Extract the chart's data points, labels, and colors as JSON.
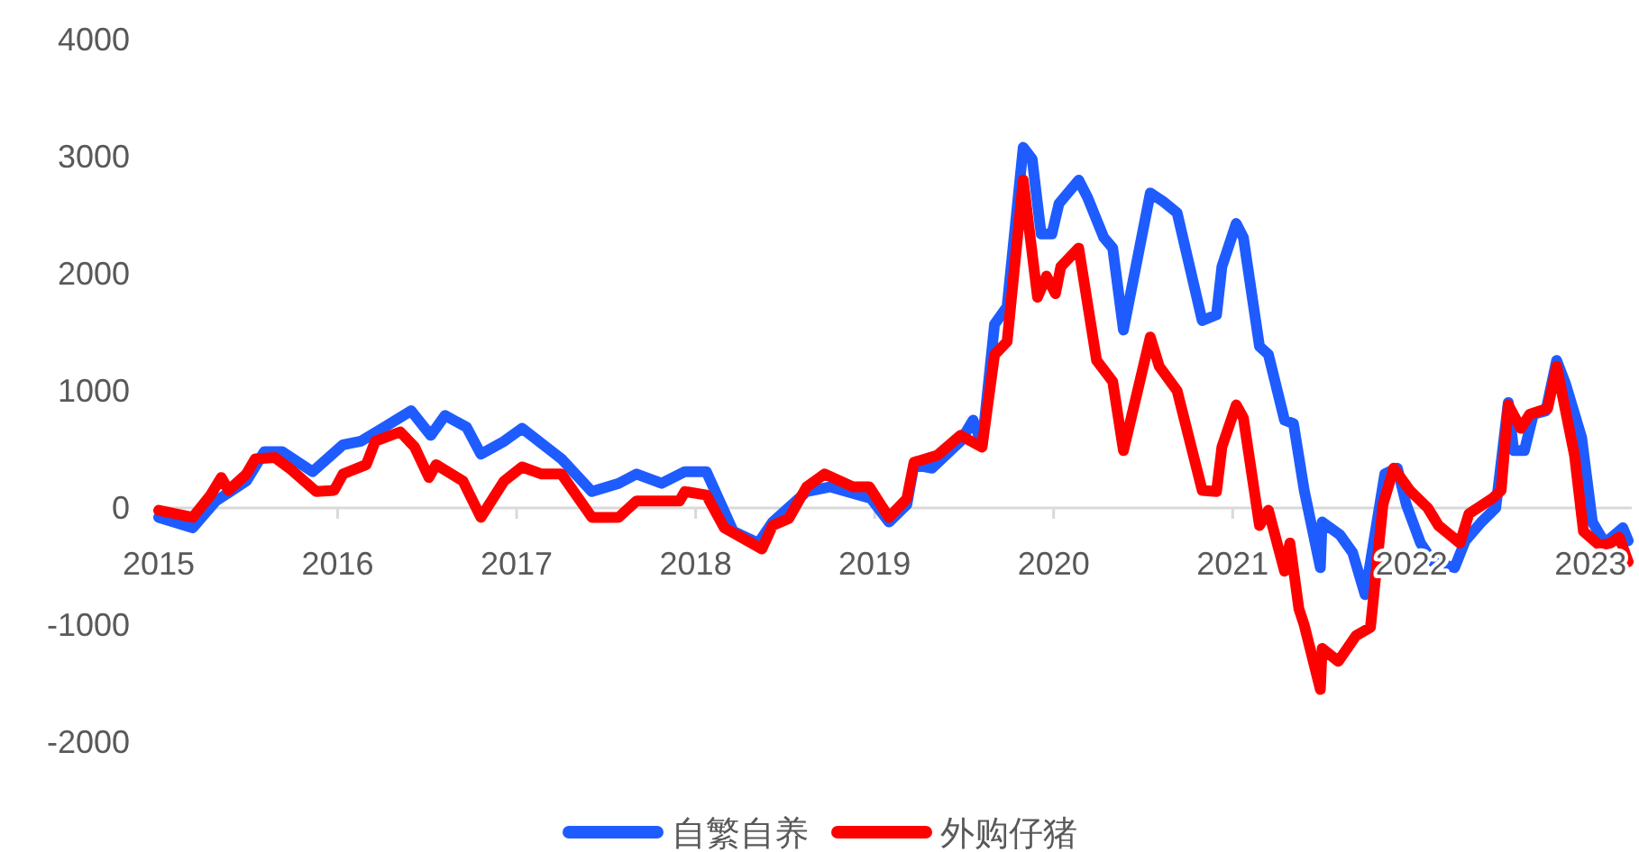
{
  "chart_data": {
    "type": "line",
    "xlim": [
      2015,
      2023.23
    ],
    "ylim": [
      -2000,
      4000
    ],
    "xticks": [
      2015,
      2016,
      2017,
      2018,
      2019,
      2020,
      2021,
      2022,
      2023
    ],
    "yticks": [
      -2000,
      -1000,
      0,
      1000,
      2000,
      3000,
      4000
    ],
    "grid": false,
    "legend": "bottom",
    "marker": "none",
    "line_style": "solid",
    "series": [
      {
        "name": "自繁自养",
        "color": "#1f5cff",
        "x": [
          2015.0,
          2015.19,
          2015.32,
          2015.49,
          2015.59,
          2015.69,
          2015.86,
          2016.03,
          2016.13,
          2016.26,
          2016.41,
          2016.52,
          2016.6,
          2016.72,
          2016.8,
          2016.93,
          2017.03,
          2017.25,
          2017.42,
          2017.57,
          2017.67,
          2017.81,
          2017.94,
          2018.06,
          2018.21,
          2018.35,
          2018.43,
          2018.62,
          2018.75,
          2018.98,
          2019.08,
          2019.18,
          2019.22,
          2019.32,
          2019.48,
          2019.55,
          2019.6,
          2019.67,
          2019.74,
          2019.83,
          2019.88,
          2019.93,
          2019.99,
          2020.03,
          2020.14,
          2020.19,
          2020.28,
          2020.33,
          2020.39,
          2020.54,
          2020.61,
          2020.69,
          2020.83,
          2020.91,
          2020.94,
          2021.02,
          2021.06,
          2021.15,
          2021.2,
          2021.29,
          2021.34,
          2021.4,
          2021.49,
          2021.5,
          2021.6,
          2021.67,
          2021.74,
          2021.85,
          2021.92,
          2021.97,
          2022.05,
          2022.12,
          2022.24,
          2022.3,
          2022.39,
          2022.47,
          2022.54,
          2022.57,
          2022.63,
          2022.68,
          2022.75,
          2022.81,
          2022.86,
          2022.95,
          2023.01,
          2023.08,
          2023.18,
          2023.21
        ],
        "values": [
          -80,
          -170,
          60,
          230,
          480,
          480,
          310,
          540,
          570,
          690,
          830,
          620,
          790,
          690,
          460,
          570,
          680,
          420,
          140,
          210,
          290,
          210,
          310,
          310,
          -200,
          -300,
          -120,
          140,
          180,
          80,
          -120,
          30,
          370,
          340,
          570,
          750,
          540,
          1570,
          1720,
          3080,
          2980,
          2340,
          2340,
          2600,
          2800,
          2650,
          2310,
          2220,
          1520,
          2690,
          2620,
          2520,
          1600,
          1650,
          2060,
          2430,
          2310,
          1380,
          1310,
          750,
          720,
          150,
          -510,
          -120,
          -230,
          -380,
          -740,
          290,
          340,
          30,
          -300,
          -460,
          -510,
          -280,
          -120,
          0,
          900,
          490,
          490,
          800,
          830,
          1260,
          1060,
          600,
          -120,
          -300,
          -170,
          -280
        ]
      },
      {
        "name": "外购仔猪",
        "color": "#ff0000",
        "x": [
          2015.0,
          2015.19,
          2015.29,
          2015.35,
          2015.39,
          2015.49,
          2015.54,
          2015.65,
          2015.73,
          2015.88,
          2015.98,
          2016.03,
          2016.16,
          2016.21,
          2016.35,
          2016.43,
          2016.51,
          2016.55,
          2016.7,
          2016.8,
          2016.93,
          2017.03,
          2017.14,
          2017.25,
          2017.42,
          2017.57,
          2017.67,
          2017.91,
          2017.94,
          2018.06,
          2018.16,
          2018.37,
          2018.43,
          2018.52,
          2018.62,
          2018.72,
          2018.88,
          2018.97,
          2019.08,
          2019.18,
          2019.22,
          2019.35,
          2019.48,
          2019.6,
          2019.67,
          2019.74,
          2019.83,
          2019.91,
          2019.96,
          2020.01,
          2020.04,
          2020.14,
          2020.24,
          2020.33,
          2020.39,
          2020.54,
          2020.59,
          2020.69,
          2020.83,
          2020.91,
          2020.94,
          2021.02,
          2021.06,
          2021.15,
          2021.2,
          2021.29,
          2021.32,
          2021.37,
          2021.4,
          2021.49,
          2021.5,
          2021.59,
          2021.69,
          2021.77,
          2021.84,
          2021.9,
          2021.99,
          2022.09,
          2022.15,
          2022.27,
          2022.32,
          2022.45,
          2022.5,
          2022.54,
          2022.61,
          2022.66,
          2022.76,
          2022.81,
          2022.91,
          2022.96,
          2023.05,
          2023.11,
          2023.16,
          2023.21
        ],
        "values": [
          -20,
          -80,
          110,
          260,
          150,
          290,
          420,
          430,
          340,
          140,
          150,
          290,
          370,
          570,
          650,
          520,
          260,
          370,
          230,
          -80,
          230,
          350,
          290,
          290,
          -80,
          -80,
          60,
          60,
          140,
          110,
          -170,
          -350,
          -150,
          -90,
          180,
          290,
          180,
          180,
          -80,
          80,
          390,
          450,
          620,
          520,
          1310,
          1420,
          2800,
          1800,
          1980,
          1830,
          2060,
          2220,
          1260,
          1080,
          490,
          1460,
          1210,
          1000,
          150,
          140,
          520,
          880,
          770,
          -150,
          -20,
          -540,
          -300,
          -860,
          -1000,
          -1550,
          -1200,
          -1310,
          -1090,
          -1020,
          30,
          340,
          150,
          0,
          -150,
          -300,
          -50,
          80,
          150,
          880,
          680,
          800,
          850,
          1210,
          450,
          -200,
          -320,
          -300,
          -250,
          -460
        ]
      }
    ]
  }
}
